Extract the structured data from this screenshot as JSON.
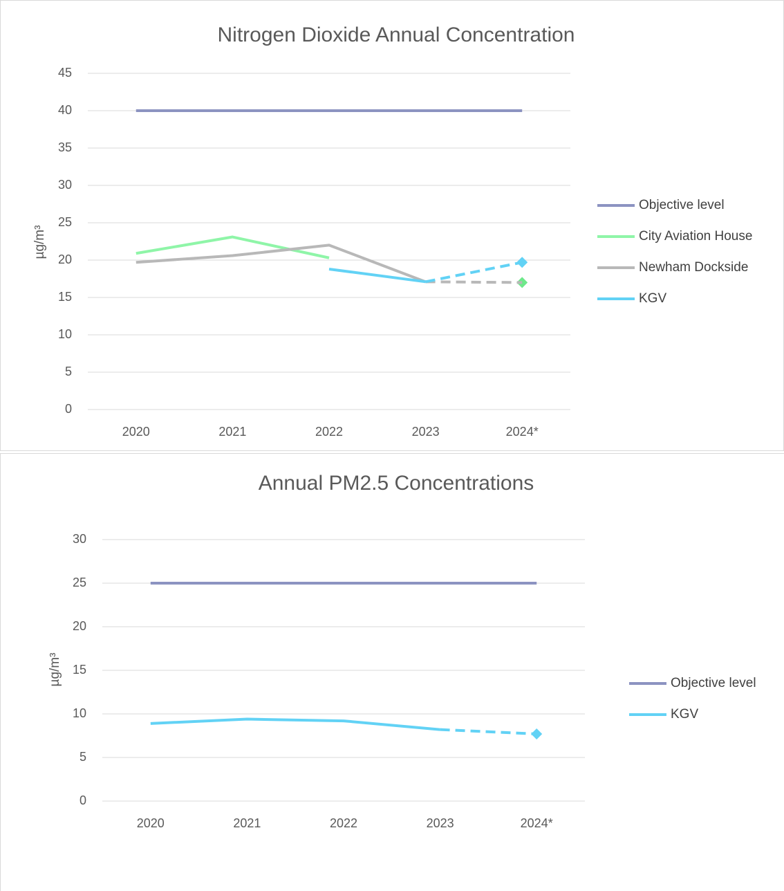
{
  "chart_data": [
    {
      "type": "line",
      "title": "Nitrogen Dioxide Annual Concentration",
      "y_label": "µg/m³",
      "categories": [
        "2020",
        "2021",
        "2022",
        "2023",
        "2024*"
      ],
      "ylim": [
        0,
        45
      ],
      "yticks": [
        0,
        5,
        10,
        15,
        20,
        25,
        30,
        35,
        40,
        45
      ],
      "grid": true,
      "legend": "right",
      "series": [
        {
          "name": "Objective level",
          "color": "#8c93c1",
          "values": [
            40,
            40,
            40,
            40,
            40
          ]
        },
        {
          "name": "City Aviation House",
          "color": "#8ff5a8",
          "marker_color": "#6ee88a",
          "values": [
            20.9,
            23.1,
            20.3,
            null,
            17.0
          ],
          "marker": "diamond"
        },
        {
          "name": "Newham Dockside",
          "color": "#b8b8b8",
          "values": [
            19.7,
            20.6,
            22.0,
            17.1,
            17.0
          ],
          "dash_last_segment": true
        },
        {
          "name": "KGV",
          "color": "#62d2f5",
          "values": [
            null,
            null,
            18.8,
            17.1,
            19.7
          ],
          "dash_last_segment": true,
          "marker": "diamond"
        }
      ]
    },
    {
      "type": "line",
      "title": "Annual PM2.5 Concentrations",
      "y_label": "µg/m³",
      "categories": [
        "2020",
        "2021",
        "2022",
        "2023",
        "2024*"
      ],
      "ylim": [
        0,
        30
      ],
      "yticks": [
        0,
        5,
        10,
        15,
        20,
        25,
        30
      ],
      "grid": true,
      "legend": "right",
      "series": [
        {
          "name": "Objective level",
          "color": "#8c93c1",
          "values": [
            25,
            25,
            25,
            25,
            25
          ]
        },
        {
          "name": "KGV",
          "color": "#62d2f5",
          "values": [
            8.9,
            9.4,
            9.2,
            8.2,
            7.7
          ],
          "dash_last_segment": true,
          "marker": "diamond"
        }
      ]
    }
  ]
}
